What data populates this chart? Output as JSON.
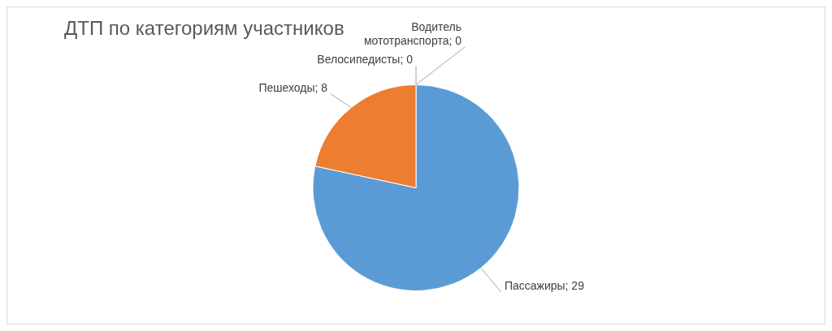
{
  "chart_data": {
    "type": "pie",
    "title": "ДТП по категориям участников",
    "categories": [
      "Пассажиры",
      "Пешеходы",
      "Велосипедисты",
      "Водитель мототранспорта"
    ],
    "values": [
      29,
      8,
      0,
      0
    ],
    "colors": [
      "#5b9bd5",
      "#ed7d31",
      "#a5a5a5",
      "#ffc000"
    ],
    "value_labels": [
      "; 29",
      "; 8",
      "; 0",
      "; 0"
    ],
    "legend": false
  }
}
